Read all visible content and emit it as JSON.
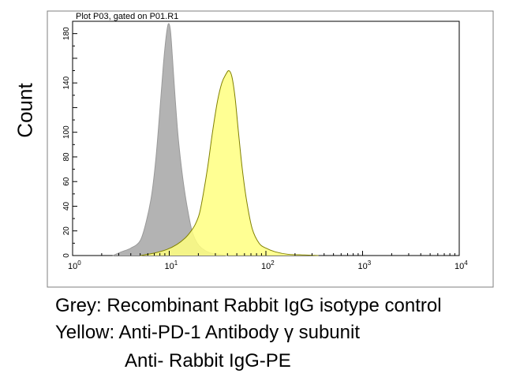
{
  "chart_data": {
    "type": "area",
    "title": "Plot P03, gated on P01.R1",
    "ylabel": "Count",
    "xlabel": "",
    "xscale": "log",
    "xlim": [
      1,
      10000
    ],
    "ylim": [
      0,
      190
    ],
    "x_ticks": [
      {
        "value": 1,
        "base": "10",
        "exp": "0"
      },
      {
        "value": 10,
        "base": "10",
        "exp": "1"
      },
      {
        "value": 100,
        "base": "10",
        "exp": "2"
      },
      {
        "value": 1000,
        "base": "10",
        "exp": "3"
      },
      {
        "value": 10000,
        "base": "10",
        "exp": "4"
      }
    ],
    "y_ticks": [
      "0",
      "20",
      "40",
      "60",
      "80",
      "100",
      "140",
      "180"
    ],
    "grid": false,
    "legend": "none",
    "series": [
      {
        "name": "Grey",
        "color": "#b3b3b3",
        "stroke": "#999999",
        "x": [
          2.6,
          3.2,
          4.0,
          5.0,
          5.8,
          6.6,
          7.3,
          8.0,
          8.7,
          9.3,
          9.8,
          10.3,
          10.8,
          11.5,
          12.3,
          13.2,
          14.3,
          15.6,
          17.2,
          19.5,
          22.5,
          27.0,
          33.0,
          40.0
        ],
        "values": [
          0,
          3,
          6,
          12,
          28,
          50,
          80,
          118,
          155,
          178,
          188,
          182,
          160,
          128,
          98,
          75,
          54,
          36,
          20,
          10,
          5,
          2,
          1,
          0
        ]
      },
      {
        "name": "Yellow",
        "color": "#ffff80",
        "stroke": "#808000",
        "x": [
          5.0,
          7.0,
          9.5,
          12.0,
          14.5,
          16.5,
          18.5,
          20.5,
          22.5,
          25.0,
          28.0,
          31.5,
          35.0,
          38.5,
          41.5,
          44.5,
          48.0,
          52.0,
          57.0,
          63.0,
          72.0,
          85.0,
          100.0,
          125.0,
          170.0,
          250.0,
          350.0
        ],
        "values": [
          0,
          2,
          5,
          9,
          14,
          19,
          25,
          34,
          50,
          72,
          100,
          125,
          140,
          147,
          150,
          145,
          128,
          100,
          70,
          45,
          22,
          10,
          6,
          3,
          1,
          0.5,
          0
        ]
      }
    ]
  },
  "caption": {
    "line1": "Grey: Recombinant Rabbit IgG isotype control",
    "line2": "Yellow: Anti-PD-1 Antibody γ subunit",
    "line3": "Anti- Rabbit IgG-PE"
  }
}
